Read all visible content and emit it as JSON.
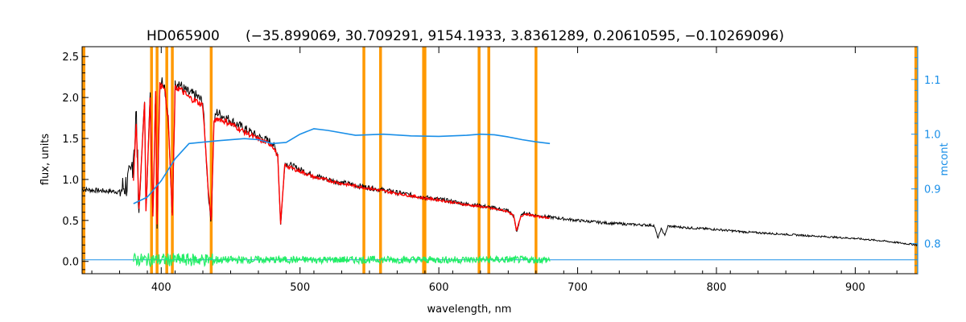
{
  "chart_data": {
    "type": "line",
    "title_name": "HD065900",
    "title_params": "(−35.899069, 30.709291, 9154.1933, 3.8361289, 0.20610595, −0.10269096)",
    "xlabel": "wavelength, nm",
    "ylabel": "flux, units",
    "ylabel_right": "mcont",
    "xlim": [
      343,
      945
    ],
    "ylim": [
      -0.15,
      2.62
    ],
    "ylim_right": [
      0.745,
      1.16
    ],
    "x_ticks": [
      400,
      500,
      600,
      700,
      800,
      900
    ],
    "y_ticks": [
      0.0,
      0.5,
      1.0,
      1.5,
      2.0,
      2.5
    ],
    "y_ticks_right": [
      0.8,
      0.9,
      1.0,
      1.1
    ],
    "x_tick_labels": [
      "400",
      "500",
      "600",
      "700",
      "800",
      "900"
    ],
    "y_tick_labels": [
      "0.0",
      "0.5",
      "1.0",
      "1.5",
      "2.0",
      "2.5"
    ],
    "y_tick_labels_right": [
      "0.8",
      "0.9",
      "1.0",
      "1.1"
    ],
    "colors": {
      "observed": "#000000",
      "model": "#ff0000",
      "residual": "#22ee66",
      "mcont": "#1a8fe8",
      "band": "#ff9900"
    },
    "orange_bands_nm": [
      393,
      397,
      404,
      408,
      436,
      546,
      558,
      589,
      590,
      629,
      636,
      670
    ],
    "series": [
      {
        "role": "observed",
        "x": [
          343,
          350,
          360,
          370,
          378,
          382,
          384,
          388,
          389,
          392,
          394,
          396,
          397,
          399,
          402,
          405,
          408,
          410,
          412,
          415,
          420,
          425,
          430,
          434,
          436,
          438,
          440,
          450,
          460,
          470,
          480,
          484,
          486,
          489,
          492,
          500,
          510,
          520,
          530,
          540,
          550,
          560,
          570,
          580,
          590,
          600,
          610,
          620,
          630,
          640,
          650,
          654,
          656,
          659,
          662,
          670,
          680,
          700,
          720,
          740,
          755,
          758,
          760,
          763,
          765,
          780,
          800,
          820,
          840,
          860,
          880,
          900,
          920,
          935,
          945
        ],
        "y": [
          0.88,
          0.87,
          0.86,
          0.85,
          1.0,
          1.75,
          0.6,
          2.0,
          0.55,
          2.05,
          0.5,
          2.15,
          0.4,
          2.2,
          2.2,
          1.75,
          0.5,
          2.15,
          2.2,
          2.12,
          2.05,
          2.02,
          1.95,
          0.8,
          0.45,
          1.7,
          1.82,
          1.72,
          1.62,
          1.52,
          1.45,
          1.3,
          0.42,
          1.2,
          1.18,
          1.12,
          1.05,
          1.0,
          0.96,
          0.93,
          0.9,
          0.87,
          0.84,
          0.81,
          0.78,
          0.76,
          0.73,
          0.7,
          0.68,
          0.65,
          0.62,
          0.55,
          0.35,
          0.55,
          0.59,
          0.56,
          0.54,
          0.5,
          0.47,
          0.45,
          0.44,
          0.28,
          0.4,
          0.32,
          0.43,
          0.41,
          0.39,
          0.36,
          0.34,
          0.32,
          0.3,
          0.28,
          0.25,
          0.22,
          0.2
        ]
      },
      {
        "role": "model",
        "x": [
          380,
          382,
          384,
          388,
          389,
          392,
          394,
          396,
          397,
          399,
          402,
          405,
          408,
          410,
          412,
          415,
          420,
          425,
          430,
          434,
          436,
          438,
          440,
          450,
          460,
          470,
          480,
          484,
          486,
          489,
          492,
          500,
          510,
          520,
          530,
          540,
          550,
          560,
          570,
          580,
          590,
          600,
          610,
          620,
          630,
          640,
          650,
          654,
          656,
          659,
          662,
          670,
          680
        ],
        "y": [
          1.0,
          1.7,
          0.65,
          1.95,
          0.6,
          2.0,
          0.55,
          2.1,
          0.45,
          2.15,
          2.15,
          1.75,
          0.55,
          2.1,
          2.12,
          2.08,
          2.0,
          1.96,
          1.9,
          0.85,
          0.5,
          1.68,
          1.75,
          1.68,
          1.58,
          1.49,
          1.42,
          1.28,
          0.45,
          1.18,
          1.15,
          1.1,
          1.03,
          0.99,
          0.95,
          0.92,
          0.89,
          0.86,
          0.83,
          0.8,
          0.77,
          0.75,
          0.72,
          0.69,
          0.67,
          0.64,
          0.61,
          0.55,
          0.37,
          0.55,
          0.58,
          0.55,
          0.53
        ]
      },
      {
        "role": "residual",
        "x_range": [
          380,
          680
        ],
        "y_center": 0.02,
        "noise": 0.05
      },
      {
        "role": "mcont",
        "x": [
          343,
          375,
          380,
          390,
          400,
          410,
          420,
          440,
          460,
          470,
          480,
          490,
          500,
          510,
          520,
          540,
          560,
          580,
          600,
          620,
          630,
          640,
          650,
          660,
          670,
          680
        ],
        "y": [
          null,
          null,
          0.873,
          0.885,
          0.915,
          0.955,
          0.983,
          0.988,
          0.992,
          0.99,
          0.983,
          0.985,
          1.0,
          1.01,
          1.007,
          0.998,
          1.0,
          0.997,
          0.996,
          0.998,
          1.0,
          0.999,
          0.995,
          0.99,
          0.986,
          0.983
        ]
      },
      {
        "role": "zero",
        "x": [
          343,
          945
        ],
        "y": [
          0.02,
          0.02
        ]
      }
    ]
  }
}
